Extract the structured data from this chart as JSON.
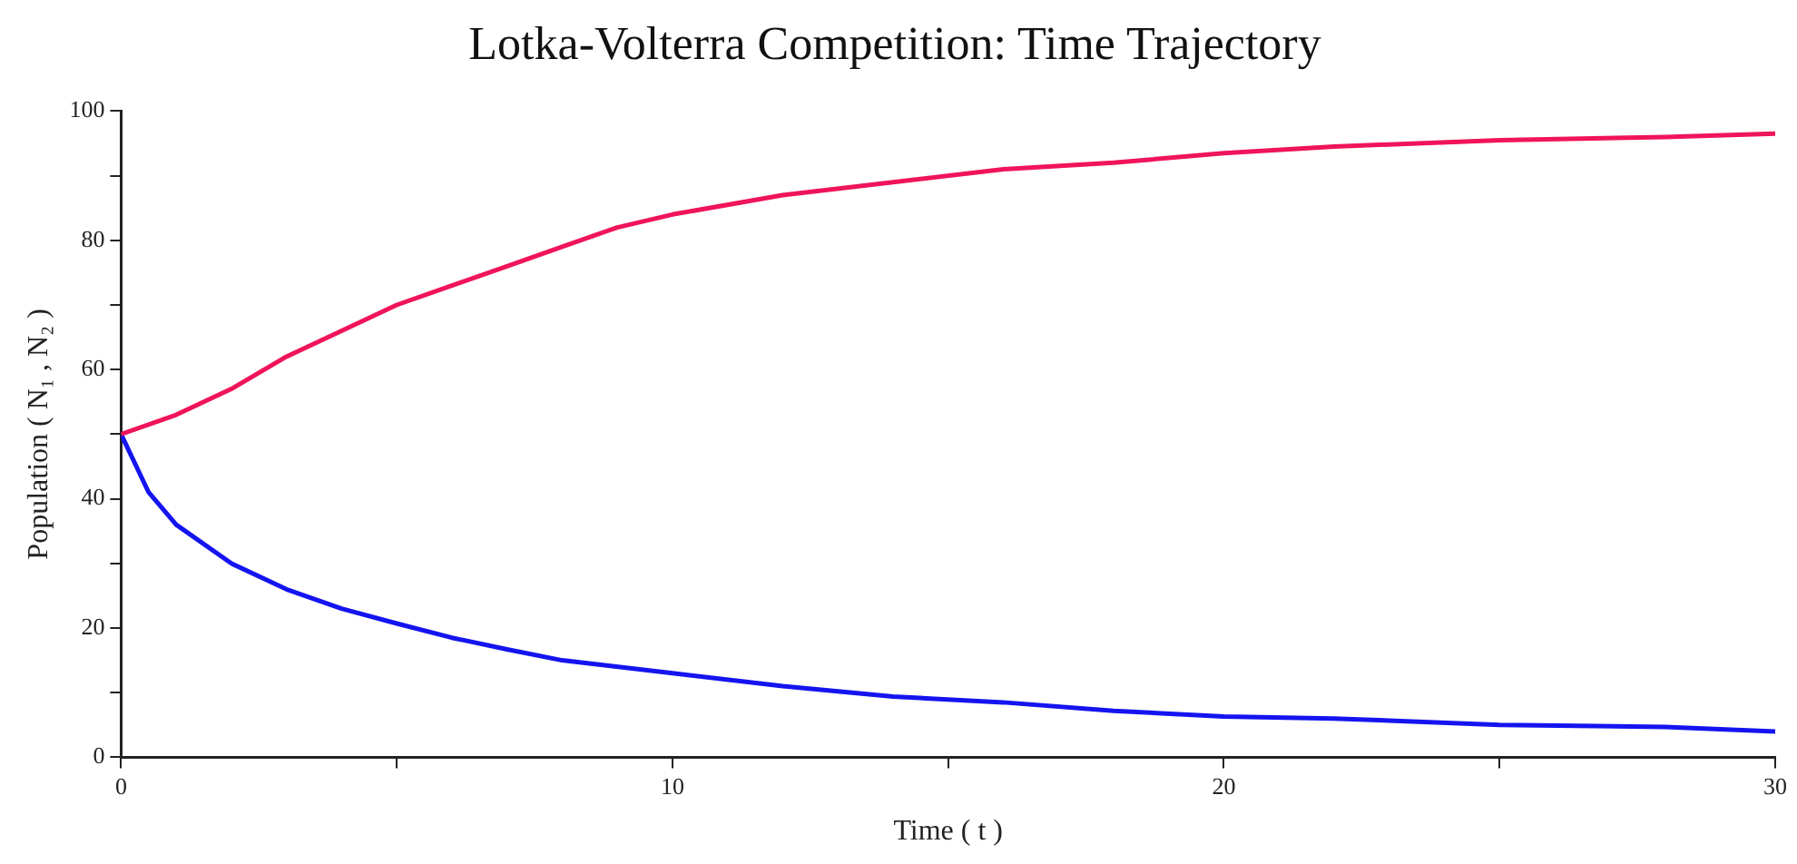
{
  "chart_data": {
    "type": "line",
    "title": "Lotka-Volterra Competition: Time Trajectory",
    "xlabel": "Time ( t )",
    "ylabel": "Population ( N₁ , N₂ )",
    "xlim": [
      0,
      30
    ],
    "xticks": [
      0,
      {
        "value": 5,
        "label": null
      },
      10,
      {
        "value": 15,
        "label": null
      },
      20,
      {
        "value": 25,
        "label": null
      },
      30
    ],
    "ylim": [
      0,
      100
    ],
    "yticks": [
      0,
      {
        "value": 10,
        "label": null
      },
      20,
      {
        "value": 30,
        "label": null
      },
      40,
      {
        "value": 50,
        "label": null
      },
      60,
      {
        "value": 70,
        "label": null
      },
      80,
      {
        "value": 90,
        "label": null
      },
      100
    ],
    "grid": false,
    "legend": false,
    "marker": "none",
    "line_style": "solid",
    "series": [
      {
        "color": "#f0145a",
        "x": [
          0,
          1,
          2,
          3,
          4,
          5,
          6,
          7,
          8,
          9,
          10,
          12,
          14,
          16,
          18,
          20,
          22,
          25,
          28,
          30
        ],
        "values": [
          50,
          53,
          57,
          62,
          66,
          70,
          73,
          76,
          79,
          82,
          84,
          87,
          89,
          91,
          92,
          93.5,
          94.5,
          95.5,
          96,
          96.5
        ]
      },
      {
        "color": "#1414f0",
        "x": [
          0,
          0.5,
          1,
          2,
          3,
          4,
          5,
          6,
          7,
          8,
          10,
          12,
          14,
          16,
          18,
          20,
          22,
          25,
          28,
          30
        ],
        "values": [
          50,
          41,
          36,
          30,
          26,
          23,
          20.7,
          18.5,
          16.7,
          15,
          13,
          11,
          9.4,
          8.5,
          7.2,
          6.3,
          6,
          5,
          4.7,
          4
        ]
      }
    ]
  }
}
